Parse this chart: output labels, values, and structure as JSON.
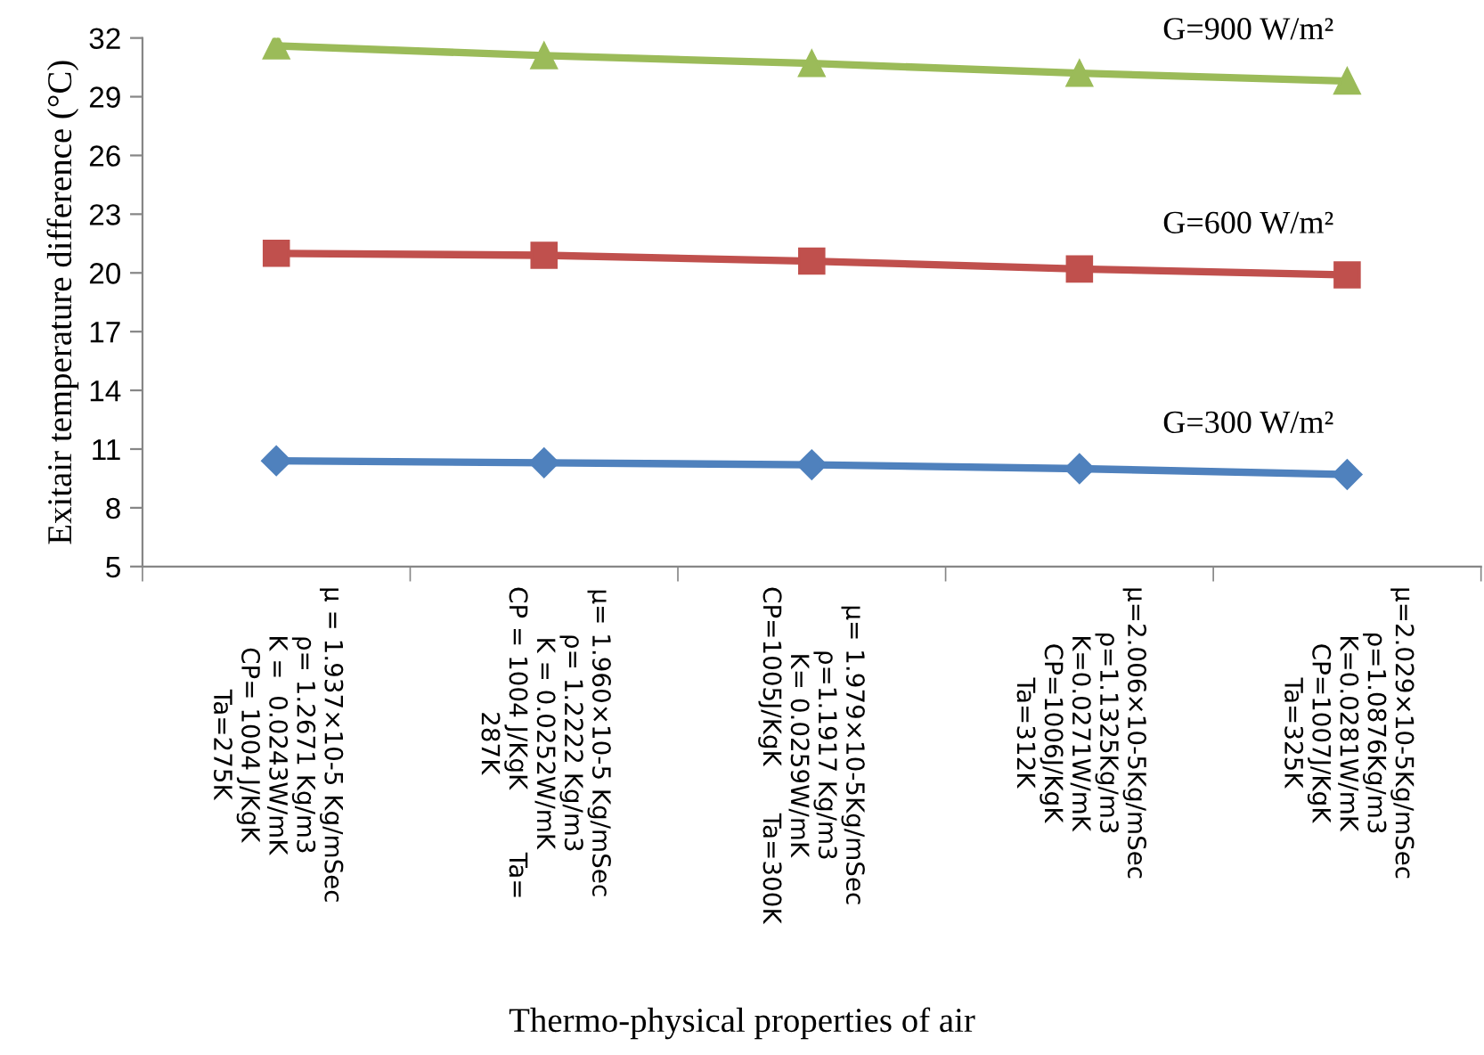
{
  "chart_data": {
    "type": "line",
    "xlabel": "Thermo-physical properties of air",
    "ylabel": "Exitair temperature difference (°C)",
    "categories": [
      "μ = 1.937×10-5 Kg/mSec\nρ= 1.2671 Kg/m3\nK =  0.0243W/mK\nCP= 1004 J/KgK\nTa=275K",
      "μ= 1.960×10-5 Kg/mSec\nρ= 1.2222 Kg/m3\nK = 0.0252W/mK\nCP = 1004 J/KgK        Ta=\n287K",
      "μ= 1.979×10-5Kg/mSec\nρ=1.1917 Kg/m3\nK= 0.0259W/mK\nCP=1005J/KgK      Ta=300K",
      "μ=2.006×10-5Kg/mSec\nρ=1.1325Kg/m3\nK=0.0271W/mK\nCP=1006J/KgK\nTa=312K",
      "μ=2.029×10-5Kg/mSec\nρ=1.0876Kg/m3\nK=0.0281W/mK\nCP=1007J/KgK\nTa=325K"
    ],
    "series": [
      {
        "name": "G=900 W/m²",
        "color": "#9bbb59",
        "marker": "triangle",
        "values": [
          31.6,
          31.1,
          30.7,
          30.2,
          29.8
        ]
      },
      {
        "name": "G=600 W/m²",
        "color": "#c0504d",
        "marker": "square",
        "values": [
          21.0,
          20.9,
          20.6,
          20.2,
          19.9
        ]
      },
      {
        "name": "G=300 W/m²",
        "color": "#4f81bd",
        "marker": "diamond",
        "values": [
          10.4,
          10.3,
          10.2,
          10.0,
          9.7
        ]
      }
    ],
    "ylim": [
      5,
      32
    ],
    "yticks": [
      5,
      8,
      11,
      14,
      17,
      20,
      23,
      26,
      29,
      32
    ],
    "grid": false,
    "legend": false,
    "line_style": "solid"
  }
}
